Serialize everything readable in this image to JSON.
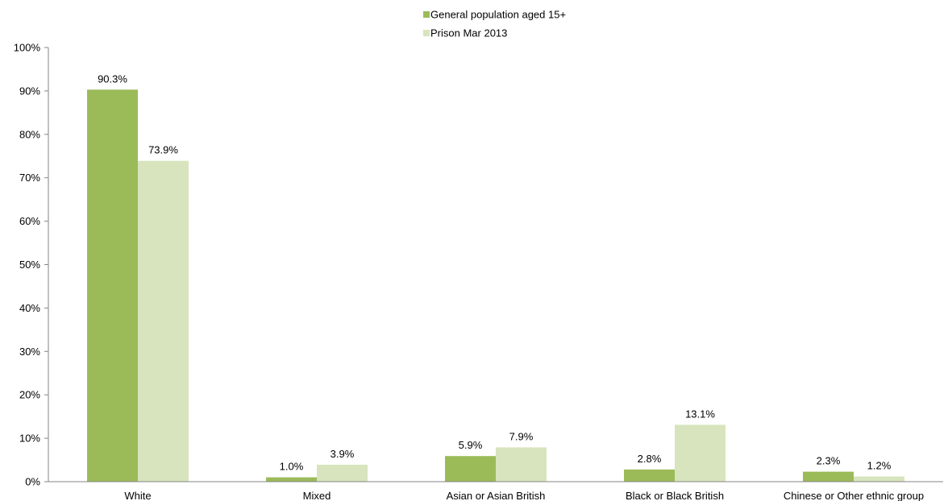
{
  "chart_data": {
    "type": "bar",
    "categories": [
      "White",
      "Mixed",
      "Asian or Asian British",
      "Black or Black British",
      "Chinese or Other ethnic group"
    ],
    "series": [
      {
        "name": "General population aged 15+",
        "color": "#9bbb59",
        "values": [
          90.3,
          1.0,
          5.9,
          2.8,
          2.3
        ],
        "labels": [
          "90.3%",
          "1.0%",
          "5.9%",
          "2.8%",
          "2.3%"
        ]
      },
      {
        "name": "Prison Mar 2013",
        "color": "#d7e4bd",
        "values": [
          73.9,
          3.9,
          7.9,
          13.1,
          1.2
        ],
        "labels": [
          "73.9%",
          "3.9%",
          "7.9%",
          "13.1%",
          "1.2%"
        ]
      }
    ],
    "ylim": [
      0,
      100
    ],
    "yticks": [
      "0%",
      "10%",
      "20%",
      "30%",
      "40%",
      "50%",
      "60%",
      "70%",
      "80%",
      "90%",
      "100%"
    ],
    "grid": false,
    "legend": "top-center"
  }
}
